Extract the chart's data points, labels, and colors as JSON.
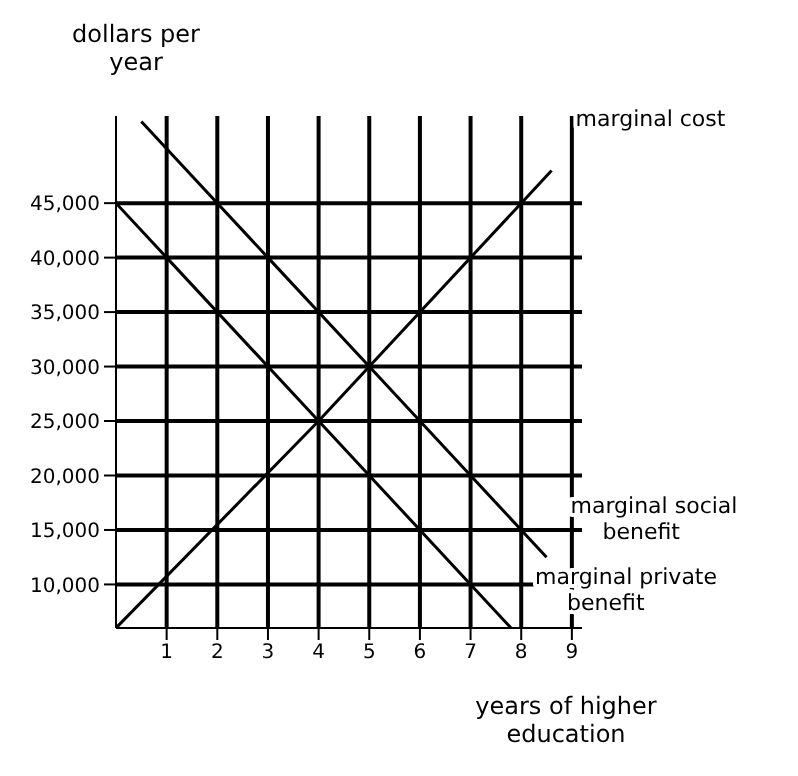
{
  "chart_data": {
    "type": "line",
    "xlabel": "years of higher education",
    "ylabel": "dollars per year",
    "xlim": [
      0,
      9.2
    ],
    "xticks": [
      1,
      2,
      3,
      4,
      5,
      6,
      7,
      8,
      9
    ],
    "ylim": [
      6000,
      53000
    ],
    "yticks": [
      {
        "value": 10000,
        "label": "10,000"
      },
      {
        "value": 15000,
        "label": "15,000"
      },
      {
        "value": 20000,
        "label": "20,000"
      },
      {
        "value": 25000,
        "label": "25,000"
      },
      {
        "value": 30000,
        "label": "30,000"
      },
      {
        "value": 35000,
        "label": "35,000"
      },
      {
        "value": 40000,
        "label": "40,000"
      },
      {
        "value": 45000,
        "label": "45,000"
      }
    ],
    "grid": true,
    "marker": "none",
    "line_style": "solid",
    "series": [
      {
        "name": "marginal cost",
        "color": "#000000",
        "x": [
          0,
          4,
          8,
          8.6
        ],
        "values": [
          6000,
          25000,
          45000,
          48000
        ]
      },
      {
        "name": "marginal social benefit",
        "color": "#000000",
        "x": [
          0.5,
          1,
          3,
          5,
          7,
          8,
          8.5
        ],
        "values": [
          52500,
          50000,
          40000,
          30000,
          20000,
          15000,
          12500
        ]
      },
      {
        "name": "marginal private benefit",
        "color": "#000000",
        "x": [
          0,
          1,
          4,
          7,
          7.8
        ],
        "values": [
          45000,
          40000,
          25000,
          10000,
          6000
        ]
      }
    ]
  }
}
